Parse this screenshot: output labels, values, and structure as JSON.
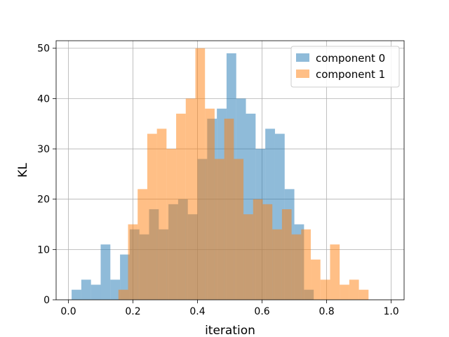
{
  "chart_data": {
    "type": "bar",
    "title": "",
    "xlabel": "iteration",
    "ylabel": "KL",
    "xlim": [
      -0.038,
      1.04
    ],
    "ylim": [
      0,
      51.5
    ],
    "x_ticks": [
      0.0,
      0.2,
      0.4,
      0.6,
      0.8,
      1.0
    ],
    "x_tick_labels": [
      "0.0",
      "0.2",
      "0.4",
      "0.6",
      "0.8",
      "1.0"
    ],
    "y_ticks": [
      0,
      10,
      20,
      30,
      40,
      50
    ],
    "y_tick_labels": [
      "0",
      "10",
      "20",
      "30",
      "40",
      "50"
    ],
    "grid": true,
    "legend_position": "top-right",
    "series": [
      {
        "name": "component 0",
        "color": "#1f77b4",
        "opacity": 0.5,
        "bin_start": 0.01,
        "bin_width": 0.03,
        "values": [
          2,
          4,
          3,
          11,
          4,
          9,
          14,
          13,
          18,
          14,
          19,
          20,
          17,
          28,
          36,
          38,
          49,
          40,
          37,
          30,
          34,
          33,
          22,
          15,
          2
        ]
      },
      {
        "name": "component 1",
        "color": "#ff7f0e",
        "opacity": 0.5,
        "bin_start": 0.155,
        "bin_width": 0.0298,
        "values": [
          2,
          15,
          22,
          33,
          34,
          30,
          37,
          40,
          50,
          38,
          28,
          36,
          28,
          17,
          20,
          19,
          14,
          18,
          13,
          14,
          8,
          4,
          11,
          3,
          4,
          2
        ]
      }
    ]
  }
}
